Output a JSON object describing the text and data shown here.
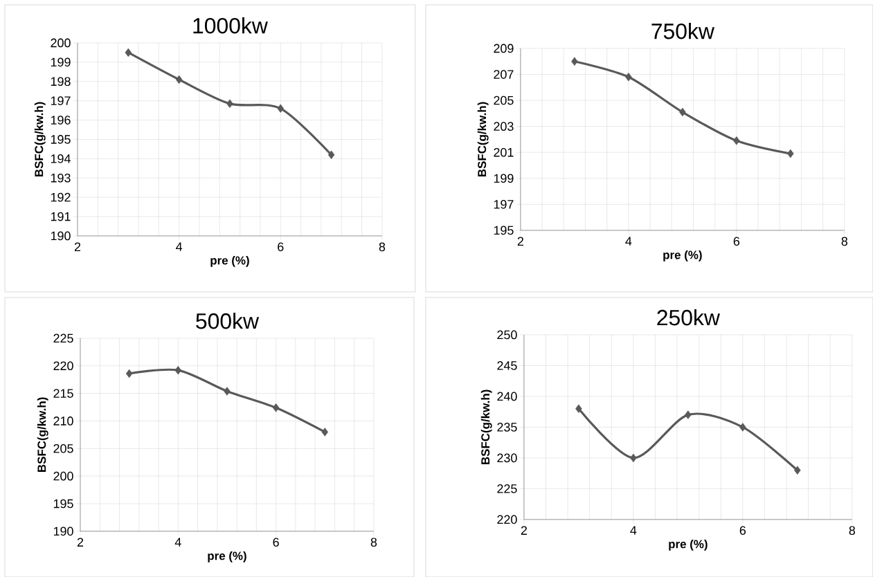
{
  "chart_data": [
    {
      "type": "line",
      "title": "1000kw",
      "xlabel": "pre (%)",
      "ylabel": "BSFC(g/kw.h)",
      "x": [
        3,
        4,
        5,
        6,
        7
      ],
      "series": [
        {
          "color": "#595959",
          "values": [
            199.5,
            198.1,
            196.85,
            196.6,
            194.2
          ]
        }
      ],
      "xlim": [
        2,
        8
      ],
      "ylim": [
        190,
        200
      ],
      "xticks": [
        2,
        4,
        6,
        8
      ],
      "yticks": [
        190,
        191,
        192,
        193,
        194,
        195,
        196,
        197,
        198,
        199,
        200
      ],
      "grid": true,
      "marker": "diamond"
    },
    {
      "type": "line",
      "title": "750kw",
      "xlabel": "pre (%)",
      "ylabel": "BSFC(g/kw.h)",
      "x": [
        3,
        4,
        5,
        6,
        7
      ],
      "series": [
        {
          "color": "#595959",
          "values": [
            208.0,
            206.8,
            204.1,
            201.9,
            200.9
          ]
        }
      ],
      "xlim": [
        2,
        8
      ],
      "ylim": [
        195,
        209
      ],
      "xticks": [
        2,
        4,
        6,
        8
      ],
      "yticks": [
        195,
        197,
        199,
        201,
        203,
        205,
        207,
        209
      ],
      "grid": true,
      "marker": "diamond"
    },
    {
      "type": "line",
      "title": "500kw",
      "xlabel": "pre (%)",
      "ylabel": "BSFC(g/kw.h)",
      "x": [
        3,
        4,
        5,
        6,
        7
      ],
      "series": [
        {
          "color": "#595959",
          "values": [
            218.6,
            219.2,
            215.4,
            212.4,
            208.0
          ]
        }
      ],
      "xlim": [
        2,
        8
      ],
      "ylim": [
        190,
        225
      ],
      "xticks": [
        2,
        4,
        6,
        8
      ],
      "yticks": [
        190,
        195,
        200,
        205,
        210,
        215,
        220,
        225
      ],
      "grid": true,
      "marker": "diamond"
    },
    {
      "type": "line",
      "title": "250kw",
      "xlabel": "pre (%)",
      "ylabel": "BSFC(g/kw.h)",
      "x": [
        3,
        4,
        5,
        6,
        7
      ],
      "series": [
        {
          "color": "#595959",
          "values": [
            238.0,
            230.0,
            237.0,
            235.0,
            228.0
          ]
        }
      ],
      "xlim": [
        2,
        8
      ],
      "ylim": [
        220,
        250
      ],
      "xticks": [
        2,
        4,
        6,
        8
      ],
      "yticks": [
        220,
        225,
        230,
        235,
        240,
        245,
        250
      ],
      "grid": true,
      "marker": "diamond"
    }
  ]
}
